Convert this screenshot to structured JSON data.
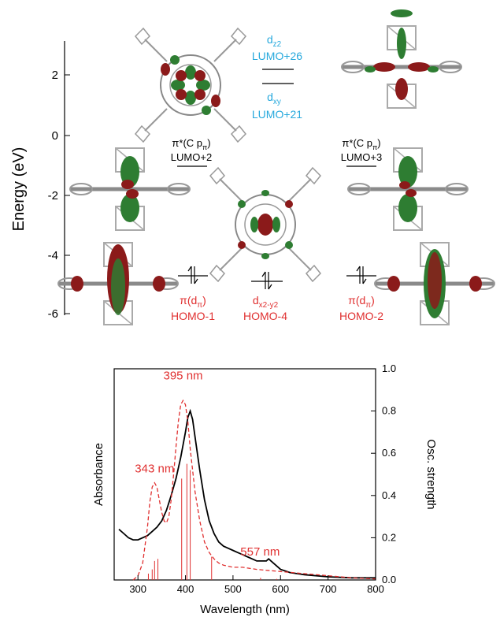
{
  "energy_axis": {
    "label": "Energy (eV)",
    "ticks": [
      "2",
      "0",
      "-2",
      "-4",
      "-6"
    ]
  },
  "levels": {
    "dz2": {
      "symbol": "d",
      "sub": "z2",
      "name": "LUMO+26"
    },
    "dxy": {
      "symbol": "d",
      "sub": "xy",
      "name": "LUMO+21"
    },
    "pi_l": {
      "symbol": "π*(C p",
      "sub": "π",
      "close": ")",
      "name": "LUMO+2"
    },
    "pi_r": {
      "symbol": "π*(C p",
      "sub": "π",
      "close": ")",
      "name": "LUMO+3"
    },
    "homo1": {
      "symbol": "π(d",
      "sub": "π",
      "close": ")",
      "name": "HOMO-1"
    },
    "homo4": {
      "symbol": "d",
      "sub": "x2-y2",
      "name": "HOMO-4"
    },
    "homo2": {
      "symbol": "π(d",
      "sub": "π",
      "close": ")",
      "name": "HOMO-2"
    }
  },
  "colors": {
    "occupied": "#e03030",
    "metal_d": "#27a9dd",
    "experimental": "#000000",
    "calculated": "#e03030"
  },
  "chart_data": {
    "type": "line",
    "xlabel": "Wavelength (nm)",
    "ylabel_left": "Absorbance",
    "ylabel_right": "Osc. strength",
    "xlim": [
      250,
      800
    ],
    "ylim_right": [
      0,
      1.0
    ],
    "x_ticks": [
      "300",
      "400",
      "500",
      "600",
      "700",
      "800"
    ],
    "y_ticks_right": [
      "0.0",
      "0.2",
      "0.4",
      "0.6",
      "0.8",
      "1.0"
    ],
    "annotations": [
      {
        "text": "395 nm",
        "x": 395
      },
      {
        "text": "343 nm",
        "x": 335
      },
      {
        "text": "557 nm",
        "x": 557
      }
    ],
    "series": [
      {
        "style": "solid-black",
        "x": [
          260,
          270,
          280,
          290,
          300,
          310,
          320,
          330,
          340,
          350,
          360,
          370,
          380,
          390,
          400,
          405,
          410,
          415,
          420,
          430,
          440,
          450,
          460,
          470,
          480,
          490,
          500,
          510,
          520,
          530,
          540,
          550,
          560,
          570,
          575,
          580,
          590,
          600,
          620,
          650,
          700,
          750,
          800
        ],
        "y": [
          0.24,
          0.22,
          0.2,
          0.19,
          0.19,
          0.2,
          0.21,
          0.23,
          0.25,
          0.28,
          0.33,
          0.4,
          0.48,
          0.58,
          0.7,
          0.77,
          0.8,
          0.76,
          0.68,
          0.52,
          0.38,
          0.28,
          0.22,
          0.18,
          0.16,
          0.15,
          0.14,
          0.13,
          0.12,
          0.11,
          0.1,
          0.09,
          0.09,
          0.09,
          0.1,
          0.09,
          0.07,
          0.05,
          0.035,
          0.025,
          0.015,
          0.01,
          0.01
        ]
      },
      {
        "style": "dashed-red",
        "x": [
          290,
          300,
          310,
          320,
          325,
          330,
          335,
          340,
          345,
          350,
          355,
          360,
          365,
          370,
          375,
          380,
          385,
          390,
          395,
          400,
          405,
          410,
          420,
          430,
          440,
          450,
          460,
          470,
          480,
          500,
          520,
          550,
          600,
          650,
          700,
          750,
          800
        ],
        "y": [
          0.0,
          0.02,
          0.08,
          0.25,
          0.37,
          0.44,
          0.46,
          0.44,
          0.38,
          0.32,
          0.28,
          0.27,
          0.3,
          0.38,
          0.5,
          0.63,
          0.75,
          0.83,
          0.85,
          0.83,
          0.75,
          0.62,
          0.42,
          0.28,
          0.18,
          0.13,
          0.1,
          0.08,
          0.07,
          0.06,
          0.06,
          0.05,
          0.04,
          0.03,
          0.02,
          0.01,
          0.005
        ]
      }
    ],
    "sticks": [
      {
        "x": 322,
        "f": 0.03
      },
      {
        "x": 330,
        "f": 0.05
      },
      {
        "x": 335,
        "f": 0.09
      },
      {
        "x": 342,
        "f": 0.1
      },
      {
        "x": 392,
        "f": 0.48
      },
      {
        "x": 403,
        "f": 0.55
      },
      {
        "x": 410,
        "f": 0.52
      },
      {
        "x": 455,
        "f": 0.11
      },
      {
        "x": 558,
        "f": 0.01
      },
      {
        "x": 592,
        "f": 0.005
      }
    ]
  }
}
